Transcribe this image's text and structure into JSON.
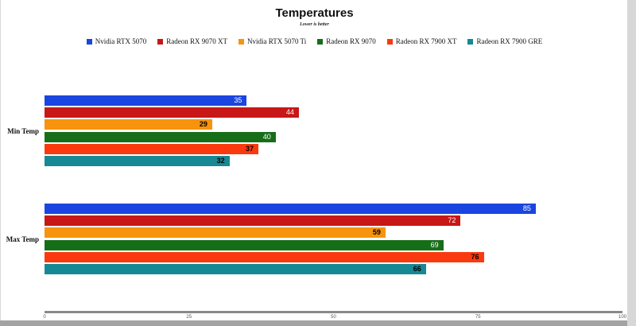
{
  "page": {
    "title": "Temperatures",
    "subtitle": "Lower is better"
  },
  "chart_data": {
    "type": "bar",
    "orientation": "horizontal",
    "title": "Temperatures",
    "subtitle": "Lower is better",
    "categories": [
      "Min Temp",
      "Max Temp"
    ],
    "series": [
      {
        "name": "Nvidia RTX 5070",
        "color": "#1b45e0",
        "label_style": "light",
        "values": [
          35,
          85
        ]
      },
      {
        "name": "Radeon RX 9070 XT",
        "color": "#c71717",
        "label_style": "light",
        "values": [
          44,
          72
        ]
      },
      {
        "name": "Nvidia RTX 5070 Ti",
        "color": "#f7930d",
        "label_style": "dark-bold",
        "values": [
          29,
          59
        ]
      },
      {
        "name": "Radeon RX 9070",
        "color": "#176e19",
        "label_style": "light",
        "values": [
          40,
          69
        ]
      },
      {
        "name": "Radeon RX 7900 XT",
        "color": "#fa3a0e",
        "label_style": "dark-bold",
        "values": [
          37,
          76
        ]
      },
      {
        "name": "Radeon RX 7900 GRE",
        "color": "#168995",
        "label_style": "dark-bold",
        "values": [
          32,
          66
        ]
      }
    ],
    "xlim": [
      0,
      100
    ],
    "x_ticks": [
      0,
      25,
      50,
      75,
      100
    ],
    "legend_position": "top",
    "grid": false,
    "axis_color": "#8a8a8a"
  }
}
